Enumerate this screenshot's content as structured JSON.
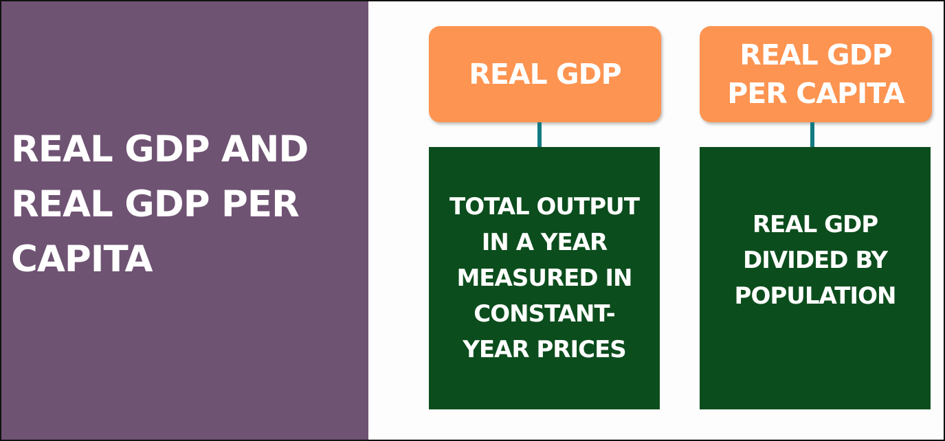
{
  "title": {
    "lines": [
      "REAL GDP AND",
      "REAL GDP PER",
      "CAPITA"
    ]
  },
  "cards": [
    {
      "heading": [
        "REAL GDP"
      ],
      "body": [
        "TOTAL OUTPUT",
        "IN A YEAR",
        "MEASURED IN",
        "CONSTANT-",
        "YEAR PRICES"
      ]
    },
    {
      "heading": [
        "REAL GDP",
        "PER CAPITA"
      ],
      "body": [
        "REAL GDP",
        "DIVIDED BY",
        "POPULATION"
      ]
    }
  ],
  "colors": {
    "left_panel": "#6f5373",
    "heading_box": "#fd9451",
    "body_box": "#0c4d1d",
    "connector": "#137b80",
    "text": "#ffffff"
  }
}
